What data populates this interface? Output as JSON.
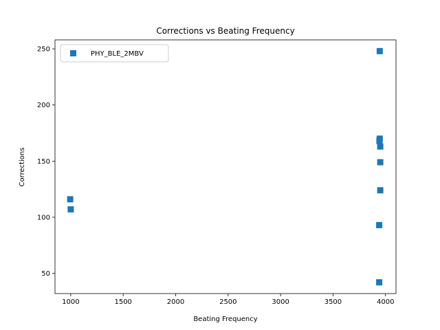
{
  "chart_data": {
    "type": "scatter",
    "title": "Corrections vs Beating Frequency",
    "xlabel": "Beating Frequency",
    "ylabel": "Corrections",
    "xlim": [
      850,
      4100
    ],
    "ylim": [
      32,
      258
    ],
    "xticks": [
      1000,
      1500,
      2000,
      2500,
      3000,
      3500,
      4000
    ],
    "yticks": [
      50,
      100,
      150,
      200,
      250
    ],
    "grid": false,
    "legend_position": "top-left",
    "series": [
      {
        "name": "PHY_BLE_2MBV",
        "color": "#1f77b4",
        "marker": "square",
        "points": [
          {
            "x": 995,
            "y": 116
          },
          {
            "x": 1000,
            "y": 107
          },
          {
            "x": 3945,
            "y": 248
          },
          {
            "x": 3945,
            "y": 170
          },
          {
            "x": 3942,
            "y": 168
          },
          {
            "x": 3950,
            "y": 163
          },
          {
            "x": 3950,
            "y": 149
          },
          {
            "x": 3950,
            "y": 124
          },
          {
            "x": 3940,
            "y": 93
          },
          {
            "x": 3940,
            "y": 42
          }
        ]
      }
    ]
  }
}
